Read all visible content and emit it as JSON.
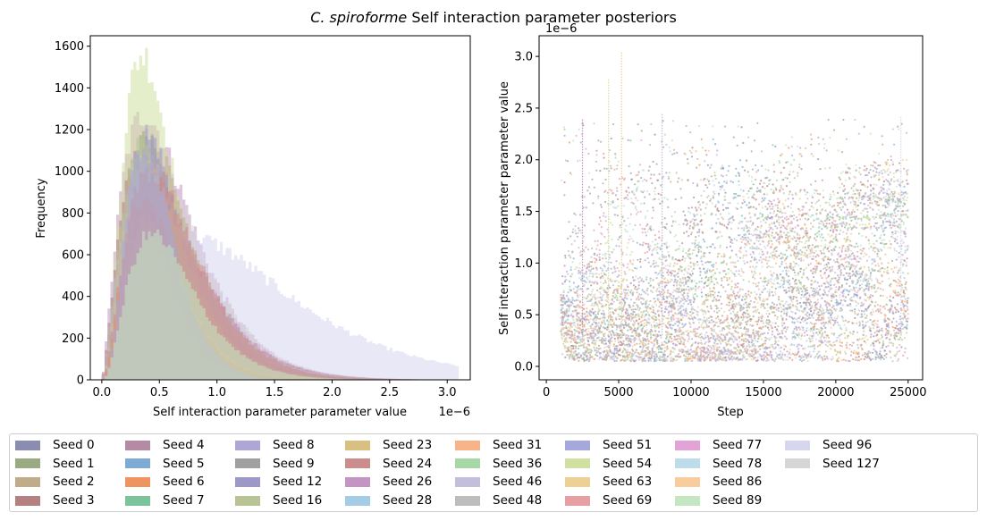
{
  "figure": {
    "title_italic": "C. spiroforme",
    "title_rest": " Self interaction parameter posteriors"
  },
  "chart_data": [
    {
      "type": "bar",
      "subtype": "histogram",
      "xlabel": "Self interaction parameter parameter value",
      "ylabel": "Frequency",
      "x_scale_label": "1e−6",
      "xlim": [
        -0.1,
        3.2
      ],
      "ylim": [
        0,
        1650
      ],
      "xticks": [
        0.0,
        0.5,
        1.0,
        1.5,
        2.0,
        2.5,
        3.0
      ],
      "xtick_labels": [
        "0.0",
        "0.5",
        "1.0",
        "1.5",
        "2.0",
        "2.5",
        "3.0"
      ],
      "yticks": [
        0,
        200,
        400,
        600,
        800,
        1000,
        1200,
        1400,
        1600
      ],
      "ytick_labels": [
        "0",
        "200",
        "400",
        "600",
        "800",
        "1000",
        "1200",
        "1400",
        "1600"
      ],
      "bin_width": 0.025,
      "series_summary": [
        {
          "name": "Seed 54",
          "peak_x": 0.35,
          "peak_frequency": 1560
        },
        {
          "name": "Seed 26",
          "peak_x": 0.37,
          "peak_frequency": 1270
        },
        {
          "name": "Seed 96",
          "peak_x": 0.75,
          "peak_frequency": 690
        },
        {
          "name": "Seed 48",
          "peak_x": 0.38,
          "peak_frequency": 1000
        }
      ]
    },
    {
      "type": "scatter",
      "subtype": "trace",
      "xlabel": "Step",
      "ylabel": "Self interaction parameter parameter value",
      "y_scale_label": "1e−6",
      "xlim": [
        -500,
        26000
      ],
      "ylim": [
        -0.13,
        3.2
      ],
      "xticks": [
        0,
        5000,
        10000,
        15000,
        20000,
        25000
      ],
      "xtick_labels": [
        "0",
        "5000",
        "10000",
        "15000",
        "20000",
        "25000"
      ],
      "yticks": [
        0.0,
        0.5,
        1.0,
        1.5,
        2.0,
        2.5,
        3.0
      ],
      "ytick_labels": [
        "0.0",
        "0.5",
        "1.0",
        "1.5",
        "2.0",
        "2.5",
        "3.0"
      ],
      "x_range": [
        1000,
        25000
      ],
      "y_range": [
        0.0,
        3.05
      ]
    }
  ],
  "legend": {
    "items": [
      {
        "label": "Seed 0",
        "color": "#8a8cb0"
      },
      {
        "label": "Seed 1",
        "color": "#9aaa82"
      },
      {
        "label": "Seed 2",
        "color": "#c0ac88"
      },
      {
        "label": "Seed 3",
        "color": "#b48080"
      },
      {
        "label": "Seed 4",
        "color": "#b48aa4"
      },
      {
        "label": "Seed 5",
        "color": "#7eaad4"
      },
      {
        "label": "Seed 6",
        "color": "#ee9460"
      },
      {
        "label": "Seed 7",
        "color": "#7cc49c"
      },
      {
        "label": "Seed 8",
        "color": "#aea6d6"
      },
      {
        "label": "Seed 9",
        "color": "#a0a0a0"
      },
      {
        "label": "Seed 12",
        "color": "#9c98c8"
      },
      {
        "label": "Seed 16",
        "color": "#b8c494"
      },
      {
        "label": "Seed 23",
        "color": "#d8c082"
      },
      {
        "label": "Seed 24",
        "color": "#cc8e8a"
      },
      {
        "label": "Seed 26",
        "color": "#c494c2"
      },
      {
        "label": "Seed 28",
        "color": "#a4cce6"
      },
      {
        "label": "Seed 31",
        "color": "#f8b488"
      },
      {
        "label": "Seed 36",
        "color": "#a8d8a8"
      },
      {
        "label": "Seed 46",
        "color": "#c2bedc"
      },
      {
        "label": "Seed 48",
        "color": "#bdbdbd"
      },
      {
        "label": "Seed 51",
        "color": "#a4a8dc"
      },
      {
        "label": "Seed 54",
        "color": "#d0e0a0"
      },
      {
        "label": "Seed 63",
        "color": "#ecd094"
      },
      {
        "label": "Seed 69",
        "color": "#e6a0a4"
      },
      {
        "label": "Seed 77",
        "color": "#e2a4d6"
      },
      {
        "label": "Seed 78",
        "color": "#bcdcea"
      },
      {
        "label": "Seed 86",
        "color": "#f8cc9c"
      },
      {
        "label": "Seed 89",
        "color": "#c4e6c0"
      },
      {
        "label": "Seed 96",
        "color": "#d6d6ee"
      },
      {
        "label": "Seed 127",
        "color": "#d6d6d6"
      }
    ]
  }
}
